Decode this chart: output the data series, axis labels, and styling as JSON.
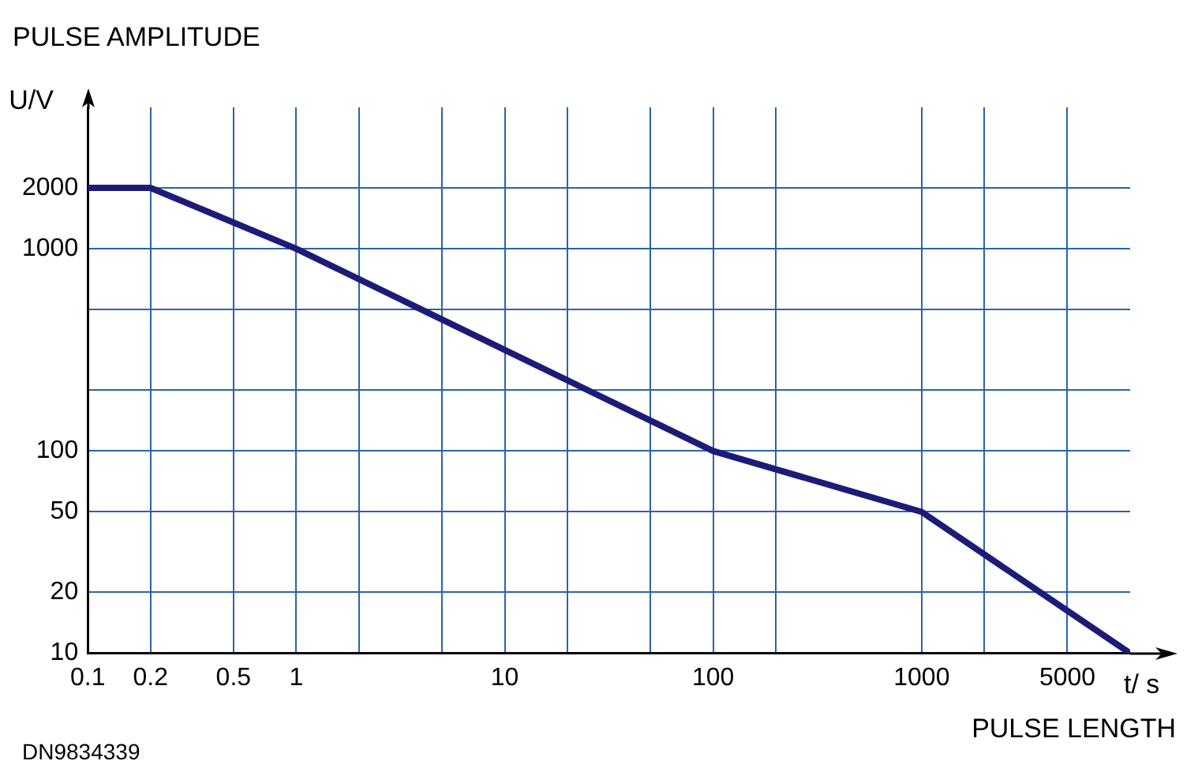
{
  "chart_data": {
    "type": "line",
    "title": "PULSE AMPLITUDE",
    "ylabel": "U/V",
    "xlabel": "t/ s",
    "annotations": [
      "PULSE LENGTH",
      "DN9834339"
    ],
    "log": "xy",
    "grid": true,
    "marker": "none",
    "line_style": "solid",
    "xlim": [
      0.1,
      10000
    ],
    "xticks": [
      0.1,
      0.2,
      0.5,
      1,
      {
        "value": 2,
        "label": null
      },
      {
        "value": 5,
        "label": null
      },
      10,
      {
        "value": 20,
        "label": null
      },
      {
        "value": 50,
        "label": null
      },
      100,
      {
        "value": 200,
        "label": null
      },
      1000,
      {
        "value": 2000,
        "label": null
      },
      5000
    ],
    "ylim": [
      10,
      5000
    ],
    "yticks": [
      10,
      20,
      50,
      100,
      {
        "value": 200,
        "label": null
      },
      {
        "value": 500,
        "label": null
      },
      1000,
      2000
    ],
    "series": [
      {
        "color": "#1c1c78",
        "x": [
          0.1,
          0.2,
          1,
          100,
          1000,
          10000
        ],
        "values": [
          2000,
          2000,
          1000,
          100,
          50,
          10
        ]
      }
    ]
  }
}
